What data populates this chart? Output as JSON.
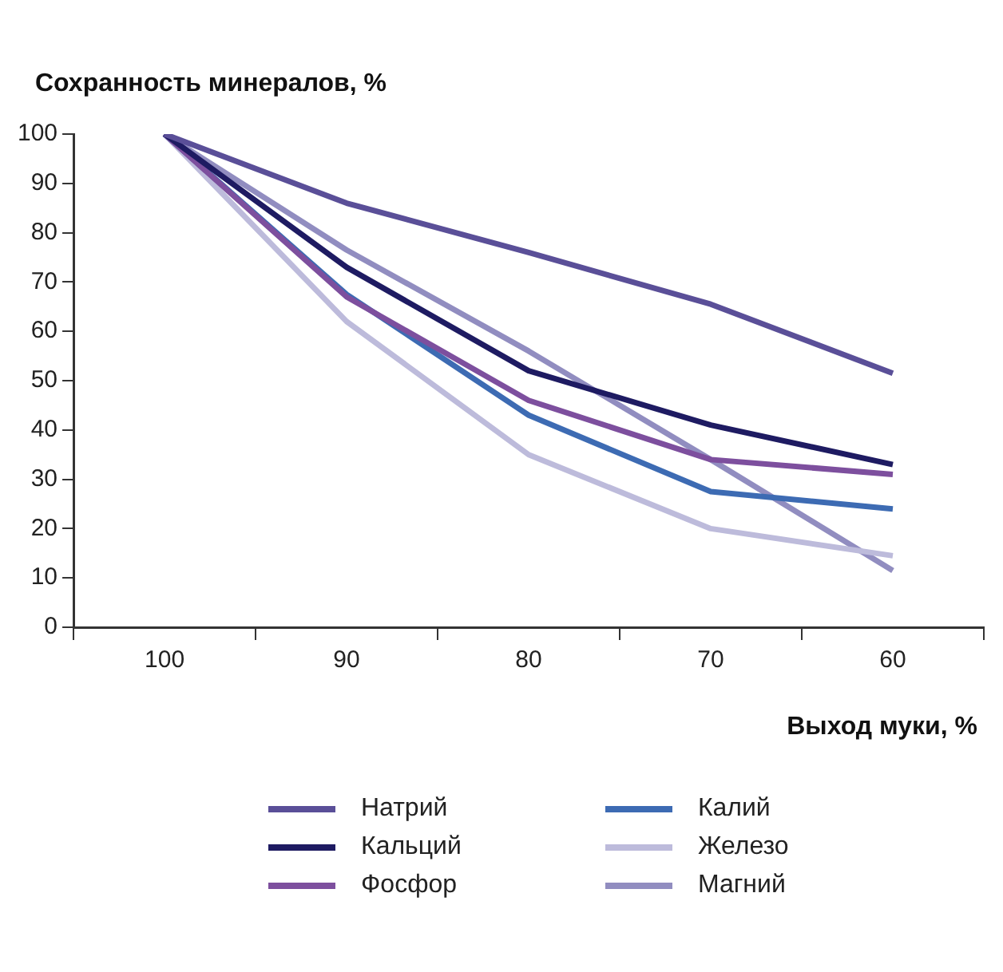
{
  "chart_data": {
    "type": "line",
    "ylabel": "Сохранность минералов, %",
    "xlabel": "Выход муки, %",
    "categories": [
      "100",
      "90",
      "80",
      "70",
      "60"
    ],
    "series": [
      {
        "name": "Натрий",
        "color": "#5a4f98",
        "values": [
          100,
          86,
          76,
          65.5,
          51.5
        ]
      },
      {
        "name": "Кальций",
        "color": "#1e1b62",
        "values": [
          100,
          73,
          52,
          41,
          33
        ]
      },
      {
        "name": "Фосфор",
        "color": "#7d4f9e",
        "values": [
          100,
          67,
          46,
          34,
          31
        ]
      },
      {
        "name": "Калий",
        "color": "#3d6bb3",
        "values": [
          100,
          67.5,
          43,
          27.5,
          24
        ]
      },
      {
        "name": "Железо",
        "color": "#bdbbdb",
        "values": [
          100,
          62,
          35,
          20,
          14.5
        ]
      },
      {
        "name": "Магний",
        "color": "#918dc0",
        "values": [
          100,
          76.5,
          56,
          34,
          11.5
        ]
      }
    ],
    "ylim": [
      0,
      100
    ],
    "yticks": [
      0,
      10,
      20,
      30,
      40,
      50,
      60,
      70,
      80,
      90,
      100
    ],
    "grid": false,
    "legend": "bottom",
    "marker": "none",
    "line_style": "solid"
  }
}
